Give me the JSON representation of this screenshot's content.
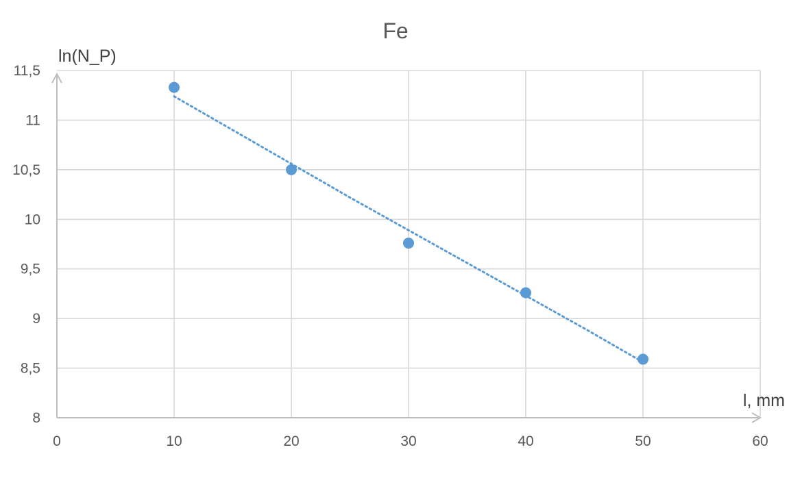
{
  "chart_data": {
    "type": "scatter",
    "title": "Fe",
    "xlabel": "l, mm",
    "ylabel": "ln(N_P)",
    "xlim": [
      0,
      60
    ],
    "ylim": [
      8,
      11.5
    ],
    "x_ticks": [
      0,
      10,
      20,
      30,
      40,
      50,
      60
    ],
    "x_tick_labels": [
      "0",
      "10",
      "20",
      "30",
      "40",
      "50",
      "60"
    ],
    "y_ticks": [
      8,
      8.5,
      9,
      9.5,
      10,
      10.5,
      11,
      11.5
    ],
    "y_tick_labels": [
      "8",
      "8,5",
      "9",
      "9,5",
      "10",
      "10,5",
      "11",
      "11,5"
    ],
    "grid": true,
    "series": [
      {
        "x": [
          10,
          20,
          30,
          40,
          50
        ],
        "y": [
          11.33,
          10.5,
          9.76,
          9.26,
          8.59
        ],
        "color": "#5b9bd5",
        "marker": "circle"
      }
    ],
    "trendline": {
      "style": "dotted",
      "color": "#5b9bd5",
      "x": [
        10,
        15,
        20,
        25,
        30,
        35,
        40,
        45,
        50
      ],
      "y": [
        11.24,
        10.9,
        10.56,
        10.22,
        9.89,
        9.56,
        9.23,
        8.9,
        8.56
      ]
    }
  }
}
